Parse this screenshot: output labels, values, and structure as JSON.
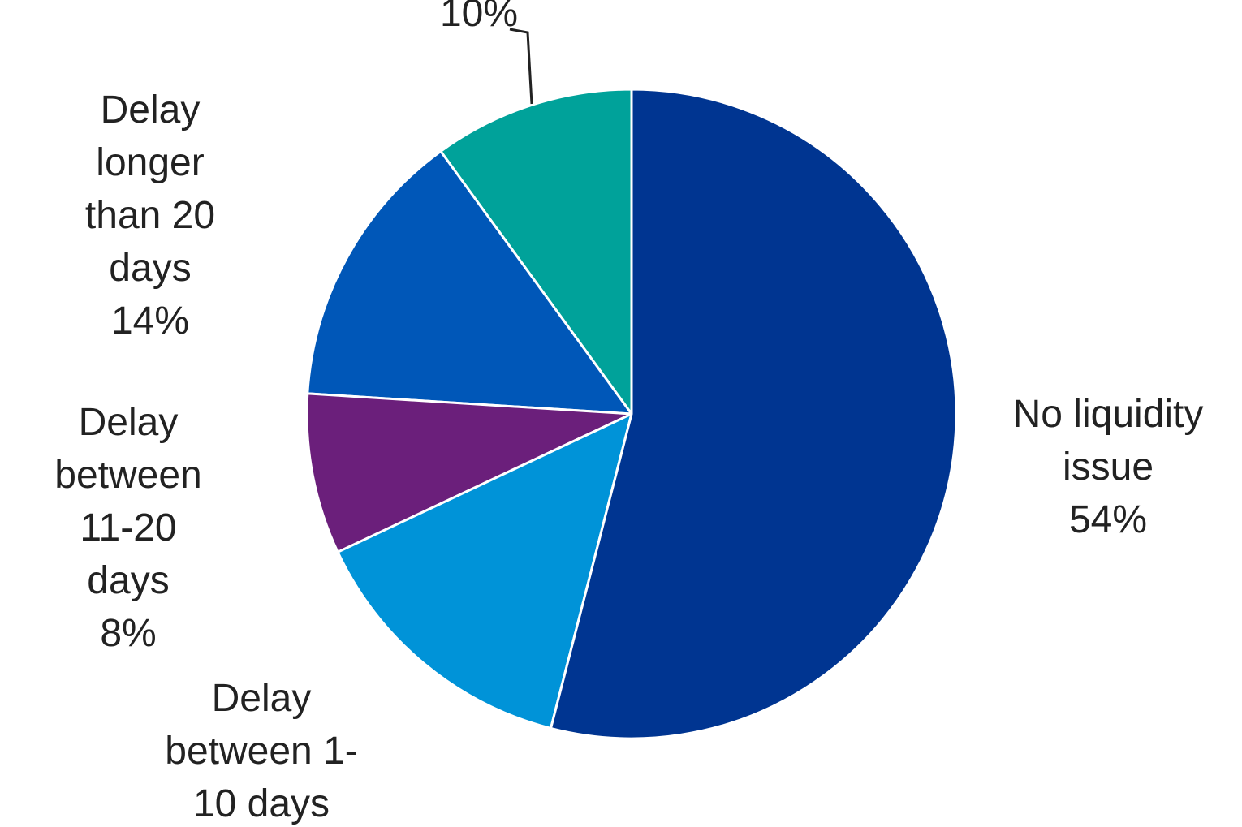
{
  "chart_data": {
    "type": "pie",
    "categories": [
      "No liquidity issue",
      "Delay between 1-10 days",
      "Delay between 11-20 days",
      "Delay longer than 20 days",
      null
    ],
    "values": [
      54,
      14,
      8,
      14,
      10
    ],
    "value_labels": [
      "54%",
      null,
      "8%",
      "14%",
      "10%"
    ],
    "colors": [
      "#003591",
      "#0093d8",
      "#6b1f7b",
      "#0057b8",
      "#00a29a"
    ]
  }
}
